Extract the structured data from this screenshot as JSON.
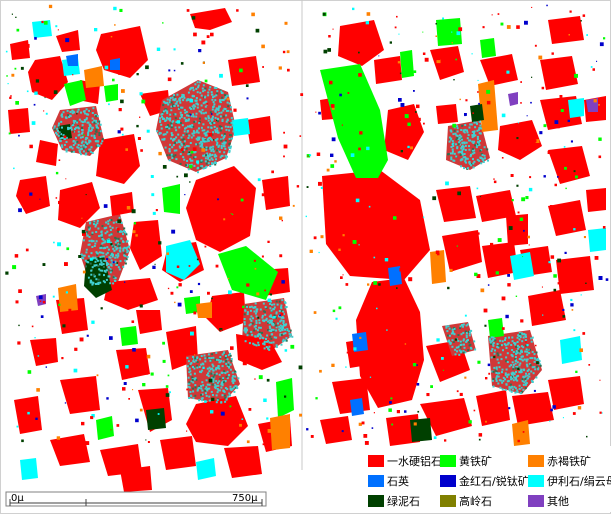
{
  "legend": {
    "items": [
      {
        "label": "一水硬铝石",
        "color": "#ff0000"
      },
      {
        "label": "黄铁矿",
        "color": "#00ff00"
      },
      {
        "label": "赤褐铁矿",
        "color": "#ff8000"
      },
      {
        "label": "石英",
        "color": "#0070ff"
      },
      {
        "label": "金红石/锐钛矿",
        "color": "#0000cc"
      },
      {
        "label": "伊利石/绢云母",
        "color": "#00ffff"
      },
      {
        "label": "绿泥石",
        "color": "#004000"
      },
      {
        "label": "高岭石",
        "color": "#808000"
      },
      {
        "label": "其他",
        "color": "#8040c0"
      }
    ]
  },
  "scale_bar": {
    "start_label": "0μ",
    "end_label": "750μ"
  },
  "colors": {
    "background": "#ffffff",
    "divider": "#c8c8c8",
    "illite_speckle": "#40d0d0",
    "chlorite_speckle": "#2f6f4f"
  }
}
